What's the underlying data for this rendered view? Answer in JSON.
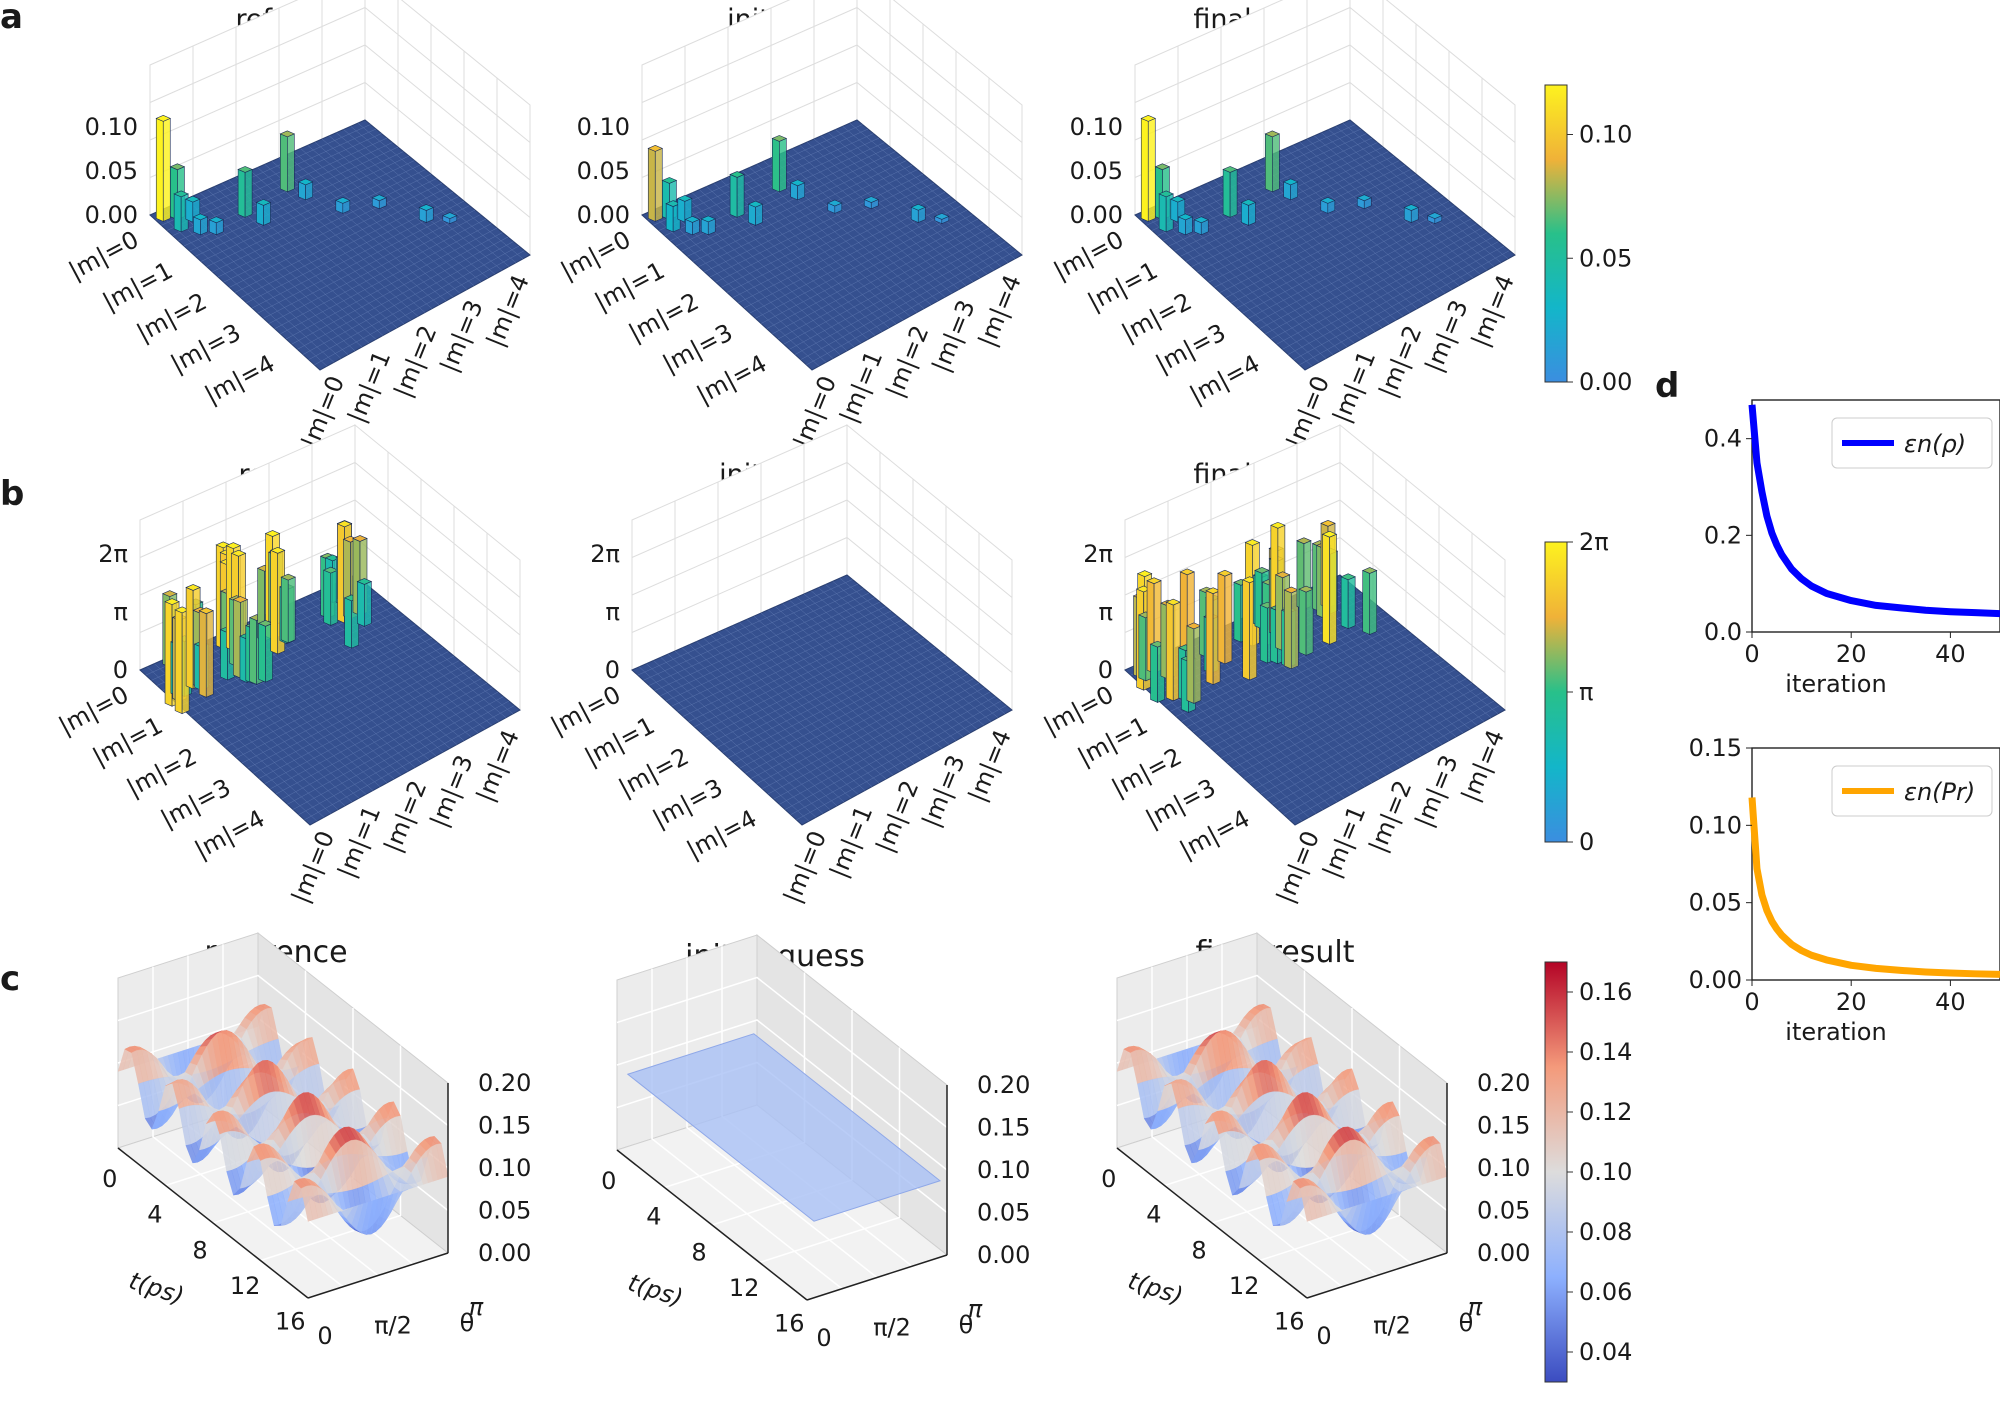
{
  "panels": {
    "a": {
      "label": "a",
      "titles": [
        "reference",
        "initial guess",
        "final result"
      ],
      "z_ticks": [
        "0.00",
        "0.05",
        "0.10"
      ],
      "m_ticks": [
        "|m|=0",
        "|m|=1",
        "|m|=2",
        "|m|=3",
        "|m|=4"
      ],
      "colorbar": {
        "ticks": [
          "0.00",
          "0.05",
          "0.10"
        ],
        "min": 0.0,
        "max": 0.12,
        "colormap": "viridis"
      }
    },
    "b": {
      "label": "b",
      "titles": [
        "reference",
        "initial guess",
        "final result"
      ],
      "z_ticks": [
        "0",
        "π",
        "2π"
      ],
      "m_ticks": [
        "|m|=0",
        "|m|=1",
        "|m|=2",
        "|m|=3",
        "|m|=4"
      ],
      "colorbar": {
        "ticks": [
          "0",
          "π",
          "2π"
        ],
        "min": 0,
        "max": 6.283,
        "colormap": "viridis"
      }
    },
    "c": {
      "label": "c",
      "titles": [
        "reference",
        "initial guess",
        "final result"
      ],
      "z_ticks": [
        "0.00",
        "0.05",
        "0.10",
        "0.15",
        "0.20"
      ],
      "t_ticks": [
        "0",
        "4",
        "8",
        "12",
        "16"
      ],
      "t_label": "t(ps)",
      "theta_ticks": [
        "0",
        "π/2",
        "π"
      ],
      "theta_label": "θ",
      "colorbar": {
        "ticks": [
          "0.04",
          "0.06",
          "0.08",
          "0.10",
          "0.12",
          "0.14",
          "0.16"
        ],
        "min": 0.03,
        "max": 0.17,
        "colormap": "coolwarm"
      }
    },
    "d": {
      "label": "d",
      "top": {
        "legend": "εn(ρ)",
        "color": "#0000ff",
        "yticks": [
          "0.0",
          "0.2",
          "0.4"
        ],
        "xticks": [
          "0",
          "20",
          "40"
        ],
        "xlabel": "iteration"
      },
      "bottom": {
        "legend": "εn(Pr)",
        "color": "#ffa500",
        "yticks": [
          "0.00",
          "0.05",
          "0.10",
          "0.15"
        ],
        "xticks": [
          "0",
          "20",
          "40"
        ],
        "xlabel": "iteration"
      }
    }
  },
  "chart_data": [
    {
      "type": "line",
      "title": "",
      "xlabel": "iteration",
      "ylabel": "",
      "xlim": [
        0,
        50
      ],
      "ylim": [
        0,
        0.48
      ],
      "series": [
        {
          "name": "εn(ρ)",
          "color": "#0000ff",
          "x": [
            0,
            1,
            2,
            3,
            4,
            5,
            6,
            8,
            10,
            12,
            15,
            20,
            25,
            30,
            35,
            40,
            45,
            50
          ],
          "y": [
            0.47,
            0.35,
            0.29,
            0.24,
            0.205,
            0.18,
            0.16,
            0.13,
            0.11,
            0.095,
            0.08,
            0.065,
            0.055,
            0.05,
            0.045,
            0.042,
            0.04,
            0.038
          ]
        }
      ]
    },
    {
      "type": "line",
      "title": "",
      "xlabel": "iteration",
      "ylabel": "",
      "xlim": [
        0,
        50
      ],
      "ylim": [
        0,
        0.15
      ],
      "series": [
        {
          "name": "εn(Pr)",
          "color": "#ffa500",
          "x": [
            0,
            1,
            2,
            3,
            4,
            5,
            6,
            8,
            10,
            12,
            15,
            20,
            25,
            30,
            35,
            40,
            45,
            50
          ],
          "y": [
            0.118,
            0.072,
            0.055,
            0.045,
            0.038,
            0.033,
            0.029,
            0.023,
            0.019,
            0.016,
            0.013,
            0.0095,
            0.0075,
            0.0062,
            0.0052,
            0.0045,
            0.004,
            0.0036
          ]
        }
      ]
    }
  ]
}
